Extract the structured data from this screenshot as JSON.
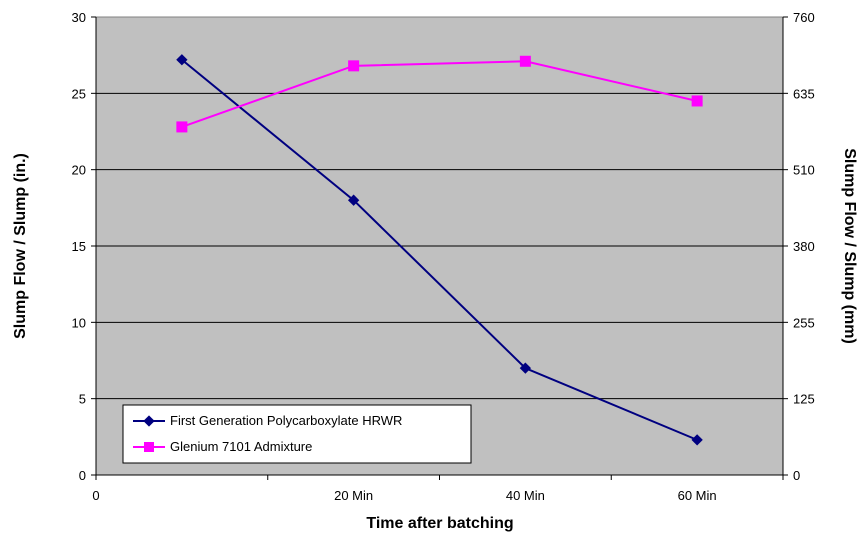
{
  "chart_data": {
    "type": "line",
    "title": "",
    "xlabel": "Time after batching",
    "ylabel": "Slump Flow / Slump (in.)",
    "y2label": "Slump Flow / Slump (mm)",
    "x_tick_labels": [
      "0",
      "20 Min",
      "40 Min",
      "60 Min"
    ],
    "y_ticks": [
      "0",
      "5",
      "10",
      "15",
      "20",
      "25",
      "30"
    ],
    "y2_ticks": [
      "0",
      "125",
      "255",
      "380",
      "510",
      "635",
      "760"
    ],
    "ylim": [
      0,
      30
    ],
    "y2lim": [
      0,
      760
    ],
    "grid": true,
    "legend_position": "bottom-left",
    "series": [
      {
        "name": "First Generation Polycarboxylate HRWR",
        "color": "#000080",
        "marker": "diamond",
        "axis": "left",
        "values": [
          27.2,
          18.0,
          7.0,
          2.3
        ]
      },
      {
        "name": "Glenium 7101 Admixture",
        "color": "#FF00FF",
        "marker": "square",
        "axis": "left",
        "values": [
          22.8,
          26.8,
          27.1,
          24.5
        ]
      }
    ],
    "plot_background": "#C0C0C0"
  }
}
